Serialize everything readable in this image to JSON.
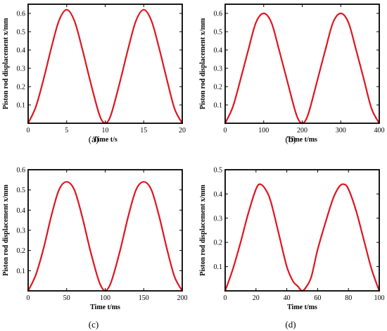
{
  "style": {
    "line_color": "#e0141e",
    "axis_color": "#000000",
    "background": "#ffffff"
  },
  "chart_data": [
    {
      "type": "line",
      "caption": "(a)",
      "xlabel": "Time t/s",
      "ylabel": "Piston rod displacement x/mm",
      "xlim": [
        0,
        20
      ],
      "ylim": [
        0,
        0.65
      ],
      "xticks": [
        0,
        5,
        10,
        15,
        20
      ],
      "yticks": [
        0.1,
        0.2,
        0.3,
        0.4,
        0.5,
        0.6
      ],
      "grid": false,
      "series": [
        {
          "x": [
            0,
            1,
            2,
            3,
            4,
            5,
            6,
            7,
            8,
            9,
            9.5,
            10,
            10.5,
            11,
            12,
            13,
            14,
            15,
            16,
            17,
            18,
            19,
            20
          ],
          "y": [
            0,
            0.09,
            0.24,
            0.41,
            0.56,
            0.62,
            0.56,
            0.41,
            0.24,
            0.08,
            0.02,
            0.0,
            0.02,
            0.08,
            0.24,
            0.41,
            0.56,
            0.62,
            0.56,
            0.41,
            0.24,
            0.08,
            0
          ]
        }
      ]
    },
    {
      "type": "line",
      "caption": "(b)",
      "xlabel": "Time t/ms",
      "ylabel": "Piston rod displacement x/mm",
      "xlim": [
        0,
        400
      ],
      "ylim": [
        0,
        0.65
      ],
      "xticks": [
        0,
        100,
        200,
        300,
        400
      ],
      "yticks": [
        0.1,
        0.2,
        0.3,
        0.4,
        0.5,
        0.6
      ],
      "grid": false,
      "series": [
        {
          "x": [
            0,
            20,
            40,
            60,
            80,
            100,
            120,
            140,
            160,
            180,
            190,
            200,
            210,
            220,
            240,
            260,
            280,
            300,
            320,
            340,
            360,
            380,
            400
          ],
          "y": [
            0,
            0.09,
            0.24,
            0.4,
            0.55,
            0.6,
            0.55,
            0.4,
            0.24,
            0.08,
            0.02,
            0.0,
            0.02,
            0.08,
            0.24,
            0.4,
            0.55,
            0.6,
            0.55,
            0.4,
            0.24,
            0.08,
            0
          ]
        }
      ]
    },
    {
      "type": "line",
      "caption": "(c)",
      "xlabel": "Time t/ms",
      "ylabel": "Piston rod displacement x/mm",
      "xlim": [
        0,
        200
      ],
      "ylim": [
        0,
        0.6
      ],
      "xticks": [
        0,
        50,
        100,
        150,
        200
      ],
      "yticks": [
        0.1,
        0.2,
        0.3,
        0.4,
        0.5,
        0.6
      ],
      "grid": false,
      "series": [
        {
          "x": [
            0,
            10,
            20,
            30,
            40,
            50,
            60,
            70,
            80,
            90,
            95,
            100,
            105,
            110,
            120,
            130,
            140,
            150,
            160,
            170,
            180,
            190,
            200
          ],
          "y": [
            0,
            0.08,
            0.21,
            0.37,
            0.5,
            0.54,
            0.5,
            0.37,
            0.21,
            0.07,
            0.02,
            0.0,
            0.02,
            0.07,
            0.21,
            0.37,
            0.5,
            0.54,
            0.5,
            0.37,
            0.21,
            0.07,
            0
          ]
        }
      ]
    },
    {
      "type": "line",
      "caption": "(d)",
      "xlabel": "Time t/ms",
      "ylabel": "Piston rod displacement x/mm",
      "xlim": [
        0,
        100
      ],
      "ylim": [
        0,
        0.5
      ],
      "xticks": [
        0,
        20,
        40,
        60,
        80,
        100
      ],
      "yticks": [
        0.1,
        0.2,
        0.3,
        0.4,
        0.5
      ],
      "grid": false,
      "series": [
        {
          "x": [
            0,
            5,
            10,
            15,
            20,
            23,
            27,
            30,
            35,
            40,
            44,
            47,
            50,
            53,
            56,
            60,
            65,
            70,
            74,
            77,
            80,
            85,
            90,
            95,
            100
          ],
          "y": [
            0,
            0.09,
            0.2,
            0.32,
            0.42,
            0.44,
            0.41,
            0.36,
            0.23,
            0.1,
            0.04,
            0.02,
            0.0,
            0.02,
            0.06,
            0.17,
            0.28,
            0.38,
            0.43,
            0.44,
            0.42,
            0.33,
            0.21,
            0.09,
            0
          ]
        }
      ]
    }
  ]
}
